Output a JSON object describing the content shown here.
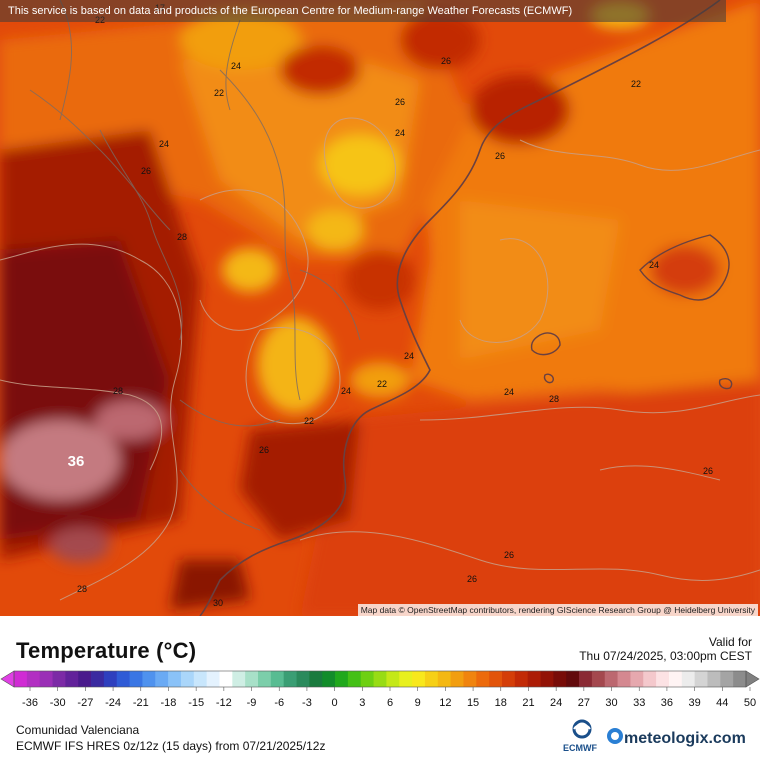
{
  "banner": "This service is based on data and products of the European Centre for Medium-range Weather Forecasts (ECMWF)",
  "attribution": "Map data © OpenStreetMap contributors, rendering GIScience Research Group @ Heidelberg University",
  "map_labels": [
    "22",
    "24",
    "22",
    "26",
    "24",
    "24",
    "26",
    "26",
    "22",
    "26",
    "24",
    "28",
    "24",
    "22",
    "24",
    "22",
    "24",
    "28",
    "26",
    "28",
    "26",
    "26",
    "36",
    "28",
    "26",
    "30",
    "17"
  ],
  "legend": {
    "title": "Temperature (°C)",
    "ticks": [
      "-36",
      "-30",
      "-27",
      "-24",
      "-21",
      "-18",
      "-15",
      "-12",
      "-9",
      "-6",
      "-3",
      "0",
      "3",
      "6",
      "9",
      "12",
      "15",
      "18",
      "21",
      "24",
      "27",
      "30",
      "33",
      "36",
      "39",
      "44",
      "50"
    ],
    "colors": [
      "#d02bd4",
      "#b22fc2",
      "#9a2fb6",
      "#7c2aa6",
      "#62229a",
      "#4a1a8c",
      "#3a2aa0",
      "#2e3fbe",
      "#2f5bd6",
      "#3a76e4",
      "#4f92ee",
      "#6aaaf4",
      "#8ac2f8",
      "#aad6fa",
      "#c8e6fc",
      "#e4f2fe",
      "#ffffff",
      "#cfeee4",
      "#a8e0c8",
      "#7cceaa",
      "#58bc92",
      "#3a9e74",
      "#2a8a5c",
      "#1a7a3e",
      "#128c2a",
      "#20a81c",
      "#44c016",
      "#6ed012",
      "#98dc14",
      "#c4e818",
      "#e8f01e",
      "#f8e81c",
      "#f6d016",
      "#f4b812",
      "#f29e10",
      "#f0840e",
      "#ec6a0c",
      "#e2540a",
      "#d43e08",
      "#c22a06",
      "#ac1c06",
      "#921206",
      "#780c08",
      "#620a0c",
      "#8a2a34",
      "#a4484e",
      "#bc6870",
      "#d48890",
      "#e6a8ae",
      "#f4c8cc",
      "#fce2e4",
      "#fff4f4",
      "#ececec",
      "#d4d4d4",
      "#bcbcbc",
      "#a4a4a4",
      "#8c8c8c"
    ],
    "valid_label": "Valid for",
    "valid_time": "Thu 07/24/2025, 03:00pm CEST"
  },
  "footer": {
    "region": "Comunidad Valenciana",
    "model": "ECMWF IFS HRES 0z/12z (15 days) from  07/21/2025/12z",
    "ecmwf": "ECMWF",
    "brand": "meteologix.com"
  }
}
